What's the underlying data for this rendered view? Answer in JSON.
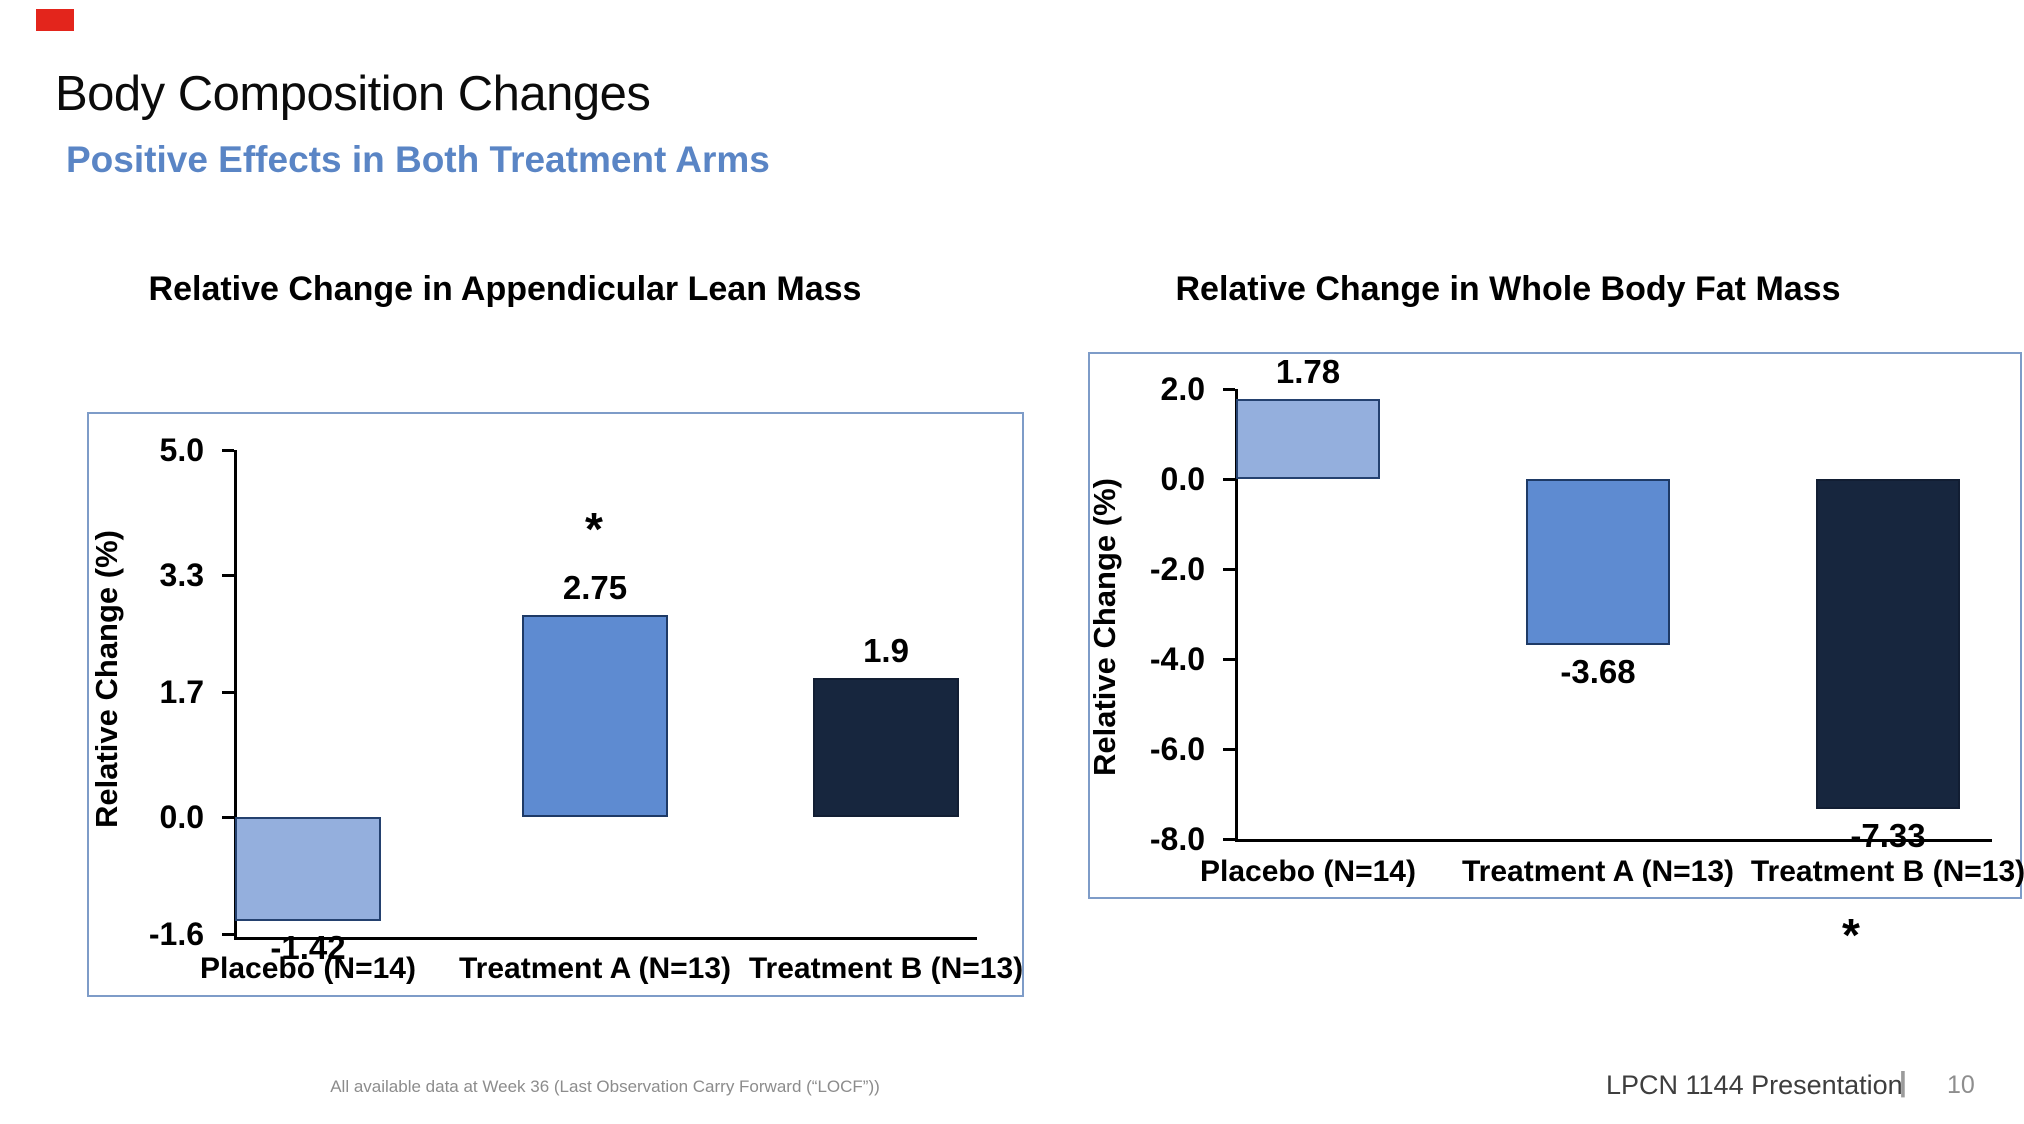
{
  "decoration": {
    "accent_color": "#E3251C"
  },
  "header": {
    "title": "Body Composition Changes",
    "subtitle": "Positive Effects in Both Treatment Arms",
    "subtitle_color": "#5A85C5"
  },
  "chart_data": [
    {
      "type": "bar",
      "title": "Relative Change in Appendicular Lean Mass",
      "ylabel": "Relative Change (%)",
      "xlabel": "",
      "categories": [
        "Placebo (N=14)",
        "Treatment A (N=13)",
        "Treatment B (N=13)"
      ],
      "values": [
        -1.42,
        2.75,
        1.9
      ],
      "value_labels": [
        "-1.42",
        "2.75",
        "1.9"
      ],
      "yticks": [
        5.0,
        3.3,
        1.7,
        0.0,
        -1.6
      ],
      "ytick_labels": [
        "5.0",
        "3.3",
        "1.7",
        "0.0",
        "-1.6"
      ],
      "ylim": [
        -1.65,
        5.0
      ],
      "grid": false,
      "legend": false,
      "bar_colors": [
        "#94AFDD",
        "#5E8BD1",
        "#17263E"
      ],
      "bar_border_colors": [
        "#24416F",
        "#1E3A66",
        "#121E33"
      ],
      "panel_border_color": "#7E9CC8",
      "annotations": [
        {
          "text": "*",
          "category": "Treatment A (N=13)",
          "position": "above-bar"
        }
      ]
    },
    {
      "type": "bar",
      "title": "Relative Change in Whole Body Fat Mass",
      "ylabel": "Relative Change (%)",
      "xlabel": "",
      "categories": [
        "Placebo (N=14)",
        "Treatment A (N=13)",
        "Treatment B (N=13)"
      ],
      "values": [
        1.78,
        -3.68,
        -7.33
      ],
      "value_labels": [
        "1.78",
        "-3.68",
        "-7.33"
      ],
      "yticks": [
        2.0,
        0.0,
        -2.0,
        -4.0,
        -6.0,
        -8.0
      ],
      "ytick_labels": [
        "2.0",
        "0.0",
        "-2.0",
        "-4.0",
        "-6.0",
        "-8.0"
      ],
      "ylim": [
        -8.0,
        2.0
      ],
      "grid": false,
      "legend": false,
      "bar_colors": [
        "#94AFDD",
        "#5E8BD1",
        "#17263E"
      ],
      "bar_border_colors": [
        "#24416F",
        "#1E3A66",
        "#121E33"
      ],
      "panel_border_color": "#7E9CC8",
      "annotations": [
        {
          "text": "*",
          "category": "Treatment B (N=13)",
          "position": "below-chart"
        }
      ]
    }
  ],
  "footer": {
    "note": "All available data at Week 36 (Last Observation Carry Forward (“LOCF”))",
    "brand": "LPCN 1144 Presentation",
    "separator": "|",
    "page_number": "10"
  }
}
